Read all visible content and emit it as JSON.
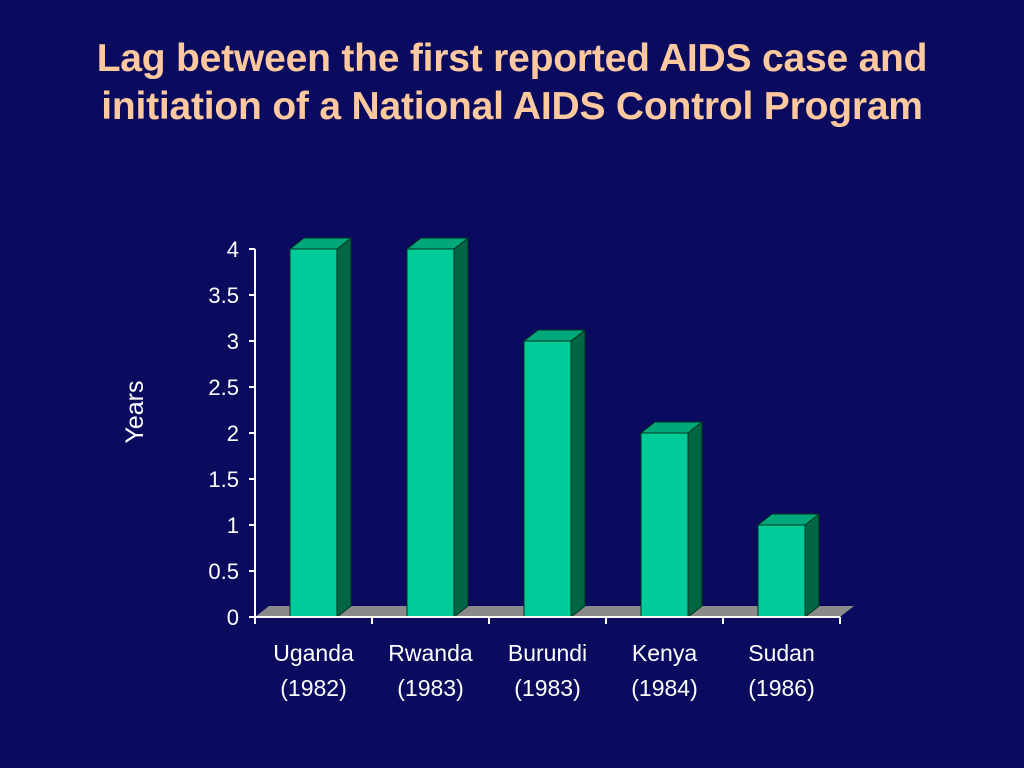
{
  "slide": {
    "title_line_1": "Lag between the first reported AIDS case and",
    "title_line_2": "initiation of a National AIDS Control Program"
  },
  "colors": {
    "background": "#0a0a5e",
    "title": "#ffc9a0",
    "bar_front": "#00cc99",
    "bar_side": "#006644",
    "bar_top": "#00a87a",
    "floor": "#8a8a8a",
    "text": "#ffffff"
  },
  "chart_data": {
    "type": "bar",
    "title": "Lag between the first reported AIDS case and initiation of a National AIDS Control Program",
    "ylabel": "Years",
    "xlabel": "",
    "ylim": [
      0,
      4
    ],
    "yticks": [
      "0",
      "0.5",
      "1",
      "1.5",
      "2",
      "2.5",
      "3",
      "3.5",
      "4"
    ],
    "categories": [
      {
        "name": "Uganda",
        "year": "(1982)"
      },
      {
        "name": "Rwanda",
        "year": "(1983)"
      },
      {
        "name": "Burundi",
        "year": "(1983)"
      },
      {
        "name": "Kenya",
        "year": "(1984)"
      },
      {
        "name": "Sudan",
        "year": "(1986)"
      }
    ],
    "values": [
      4,
      4,
      3,
      2,
      1
    ],
    "style": "3d",
    "grid": false,
    "legend": "none"
  }
}
